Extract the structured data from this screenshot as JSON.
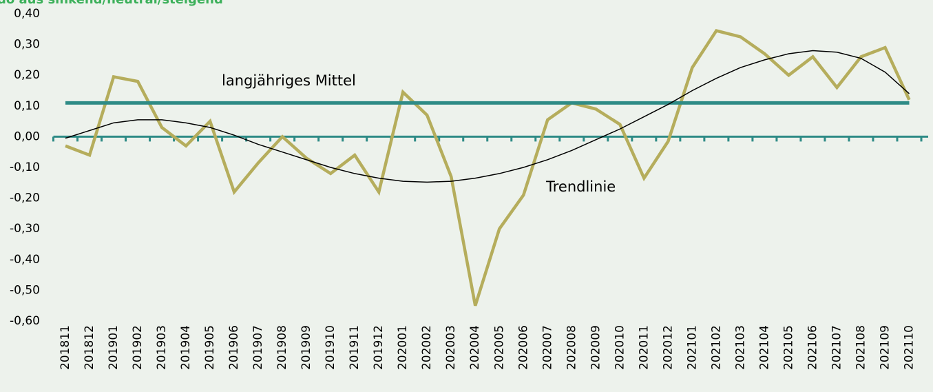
{
  "chart_data": {
    "type": "line",
    "title": "do aus sinkend/neutral/steigend",
    "annotations": [
      "langjähriges Mittel",
      "Trendlinie"
    ],
    "categories": [
      "201811",
      "201812",
      "201901",
      "201902",
      "201903",
      "201904",
      "201905",
      "201906",
      "201907",
      "201908",
      "201909",
      "201910",
      "201911",
      "201912",
      "202001",
      "202002",
      "202003",
      "202004",
      "202005",
      "202006",
      "202007",
      "202008",
      "202009",
      "202010",
      "202011",
      "202012",
      "202101",
      "202102",
      "202103",
      "202104",
      "202105",
      "202106",
      "202107",
      "202108",
      "202109",
      "202110"
    ],
    "series": [
      {
        "color": "#b5ad5c",
        "width": 4.5,
        "values": [
          -0.03,
          -0.06,
          0.195,
          0.18,
          0.03,
          -0.03,
          0.05,
          -0.18,
          -0.085,
          0.0,
          -0.07,
          -0.12,
          -0.06,
          -0.18,
          0.145,
          0.07,
          -0.13,
          -0.55,
          -0.3,
          -0.19,
          0.055,
          0.11,
          0.09,
          0.04,
          -0.135,
          -0.015,
          0.225,
          0.345,
          0.325,
          0.27,
          0.2,
          0.26,
          0.16,
          0.26,
          0.29,
          0.12
        ]
      },
      {
        "color": "#2e8b86",
        "width": 5,
        "values": [
          0.11,
          0.11,
          0.11,
          0.11,
          0.11,
          0.11,
          0.11,
          0.11,
          0.11,
          0.11,
          0.11,
          0.11,
          0.11,
          0.11,
          0.11,
          0.11,
          0.11,
          0.11,
          0.11,
          0.11,
          0.11,
          0.11,
          0.11,
          0.11,
          0.11,
          0.11,
          0.11,
          0.11,
          0.11,
          0.11,
          0.11,
          0.11,
          0.11,
          0.11,
          0.11,
          0.11
        ]
      },
      {
        "color": "#000000",
        "width": 1.5,
        "values": [
          -0.005,
          0.02,
          0.045,
          0.055,
          0.055,
          0.045,
          0.03,
          0.005,
          -0.025,
          -0.05,
          -0.075,
          -0.1,
          -0.12,
          -0.135,
          -0.145,
          -0.148,
          -0.145,
          -0.135,
          -0.12,
          -0.1,
          -0.075,
          -0.045,
          -0.01,
          0.025,
          0.065,
          0.105,
          0.15,
          0.19,
          0.225,
          0.25,
          0.27,
          0.28,
          0.275,
          0.255,
          0.21,
          0.14
        ]
      }
    ],
    "ylim": [
      -0.6,
      0.4
    ],
    "yticks": [
      {
        "value": 0.4,
        "label": "0,40"
      },
      {
        "value": 0.3,
        "label": "0,30"
      },
      {
        "value": 0.2,
        "label": "0,20"
      },
      {
        "value": 0.1,
        "label": "0,10"
      },
      {
        "value": 0,
        "label": "0,00"
      },
      {
        "value": -0.1,
        "label": "-0,10"
      },
      {
        "value": -0.2,
        "label": "-0,20"
      },
      {
        "value": -0.3,
        "label": "-0,30"
      },
      {
        "value": -0.4,
        "label": "-0,40"
      },
      {
        "value": -0.5,
        "label": "-0,50"
      },
      {
        "value": -0.6,
        "label": "-0,60"
      }
    ],
    "axis_color": "#2e8b86",
    "title_color": "#3cb05a"
  }
}
